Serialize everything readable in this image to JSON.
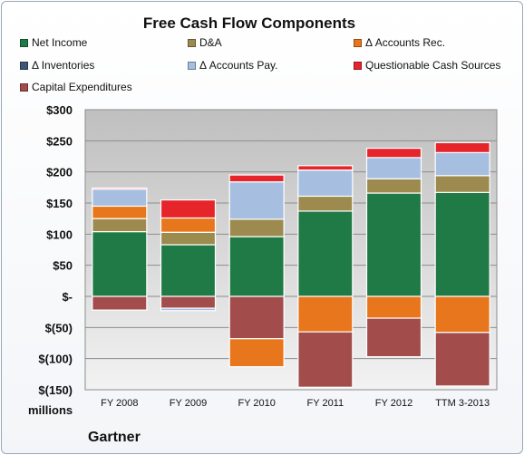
{
  "chart_data": {
    "type": "bar",
    "stacked": true,
    "title": "Free Cash Flow Components",
    "units_label": "millions",
    "categories": [
      "FY 2008",
      "FY 2009",
      "FY 2010",
      "FY 2011",
      "FY 2012",
      "TTM 3-2013"
    ],
    "series": [
      {
        "name": "Net Income",
        "color": "#1f7a45",
        "values": [
          104,
          83,
          96,
          137,
          166,
          167
        ]
      },
      {
        "name": "D&A",
        "color": "#9c8a4f",
        "values": [
          21,
          20,
          28,
          24,
          23,
          27
        ]
      },
      {
        "name": "Δ Accounts Rec.",
        "color": "#e8761c",
        "values": [
          20,
          23,
          0,
          -57,
          -35,
          -58
        ]
      },
      {
        "name": "Δ Inventories",
        "color": "#3d5675",
        "values": [
          0,
          0,
          0,
          0,
          0,
          0
        ]
      },
      {
        "name": "Δ Accounts Pay.",
        "color": "#a6bfe0",
        "values": [
          27,
          0,
          60,
          42,
          34,
          37
        ]
      },
      {
        "name": "Questionable Cash Sources",
        "color": "#e6252b",
        "values": [
          2,
          29,
          11,
          7,
          15,
          16
        ]
      },
      {
        "name": "Capital Expenditures",
        "color": "#a24c4c",
        "values": [
          -22,
          -19,
          -68,
          -89,
          -62,
          -86
        ]
      }
    ],
    "extra_segments": [
      {
        "category": "FY 2009",
        "series": "Δ Accounts Pay.",
        "value": -4
      },
      {
        "category": "FY 2010",
        "series": "Δ Accounts Rec.",
        "value": -45
      }
    ],
    "y_ticks": [
      "$300",
      "$250",
      "$200",
      "$150",
      "$100",
      "$50",
      "$-",
      "$(50)",
      "$(100)",
      "$(150)"
    ],
    "ylim": [
      -150,
      300
    ],
    "grid": true,
    "legend_position": "top"
  },
  "brand": "Gartner"
}
